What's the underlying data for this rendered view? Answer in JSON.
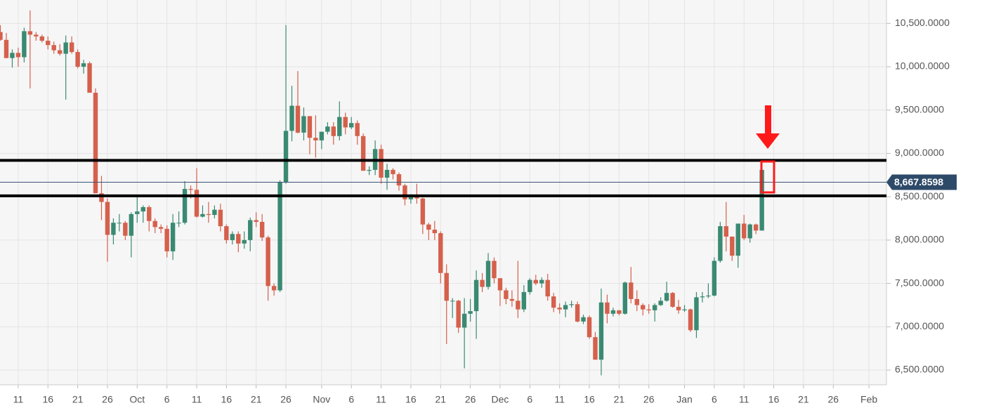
{
  "chart_data": {
    "type": "candlestick",
    "categories": [
      null,
      null,
      null,
      "11",
      null,
      null,
      null,
      null,
      "16",
      null,
      null,
      null,
      null,
      "21",
      null,
      null,
      null,
      null,
      "26",
      null,
      null,
      null,
      null,
      "Oct",
      null,
      null,
      null,
      null,
      "6",
      null,
      null,
      null,
      null,
      "11",
      null,
      null,
      null,
      null,
      "16",
      null,
      null,
      null,
      null,
      "21",
      null,
      null,
      null,
      null,
      "26",
      null,
      null,
      null,
      null,
      null,
      "Nov",
      null,
      null,
      null,
      null,
      "6",
      null,
      null,
      null,
      null,
      "11",
      null,
      null,
      null,
      null,
      "16",
      null,
      null,
      null,
      null,
      "21",
      null,
      null,
      null,
      null,
      "26",
      null,
      null,
      null,
      null,
      "Dec",
      null,
      null,
      null,
      null,
      "6",
      null,
      null,
      null,
      null,
      "11",
      null,
      null,
      null,
      null,
      "16",
      null,
      null,
      null,
      null,
      "21",
      null,
      null,
      null,
      null,
      "26",
      null,
      null,
      null,
      null,
      null,
      "Jan",
      null,
      null,
      null,
      null,
      "6",
      null,
      null,
      null,
      null,
      "11",
      null,
      null,
      null,
      null,
      "16",
      null,
      null,
      null,
      null,
      "21",
      null,
      null,
      null,
      null,
      "26",
      null,
      null,
      null,
      null,
      null,
      "Feb",
      null,
      null
    ],
    "open": [
      10400,
      10310,
      10100,
      10160,
      10110,
      10410,
      10370,
      10350,
      10300,
      10250,
      10190,
      10150,
      10280,
      10170,
      10000,
      10040,
      9700,
      8540,
      8440,
      8060,
      8200,
      8200,
      8050,
      8300,
      8330,
      8380,
      8220,
      8150,
      8130,
      7870,
      8200,
      8200,
      8590,
      8580,
      8270,
      8300,
      8290,
      8350,
      8160,
      8000,
      8070,
      7960,
      8000,
      8230,
      8210,
      8030,
      7470,
      7420,
      8670,
      9260,
      9550,
      9240,
      9430,
      9180,
      9150,
      9250,
      9310,
      9200,
      9420,
      9300,
      9350,
      9200,
      8800,
      8810,
      9050,
      8720,
      8810,
      8760,
      8630,
      8470,
      8500,
      8480,
      8180,
      8120,
      8080,
      7620,
      7300,
      7300,
      6990,
      7150,
      7180,
      7540,
      7460,
      7760,
      7560,
      7420,
      7320,
      7300,
      7200,
      7400,
      7540,
      7500,
      7540,
      7350,
      7220,
      7200,
      7250,
      7260,
      7060,
      7110,
      6880,
      6620,
      7280,
      7150,
      7190,
      7150,
      7510,
      7320,
      7250,
      7200,
      7190,
      7250,
      7300,
      7390,
      7230,
      7190,
      7200,
      6960,
      7340,
      7350,
      7360,
      7760,
      8160,
      8040,
      7820,
      8190,
      8020,
      8180,
      8110,
      null,
      null,
      null,
      null,
      null,
      null,
      null,
      null,
      null,
      null,
      null,
      null,
      null,
      null,
      null,
      null,
      null,
      null,
      null,
      null
    ],
    "high": [
      10480,
      10390,
      10200,
      10220,
      10450,
      10650,
      10400,
      10370,
      10350,
      10290,
      10260,
      10360,
      10350,
      10200,
      10080,
      10060,
      9750,
      8740,
      8480,
      8250,
      8300,
      8220,
      8320,
      8500,
      8400,
      8400,
      8250,
      8180,
      8170,
      8300,
      8330,
      8680,
      8630,
      8830,
      8400,
      8440,
      8400,
      8420,
      8180,
      8100,
      8100,
      8100,
      8260,
      8320,
      8300,
      8050,
      7500,
      8690,
      10480,
      9780,
      9950,
      9530,
      9430,
      9440,
      9250,
      9360,
      9360,
      9600,
      9470,
      9420,
      9380,
      9230,
      8850,
      9150,
      9100,
      8880,
      8830,
      8780,
      8650,
      8530,
      8650,
      8490,
      8200,
      8220,
      8100,
      7720,
      7330,
      7310,
      7330,
      7320,
      7650,
      7620,
      7850,
      7800,
      7560,
      7450,
      7420,
      7760,
      7480,
      7560,
      7600,
      7570,
      7610,
      7390,
      7270,
      7290,
      7300,
      7290,
      7140,
      7130,
      6940,
      7440,
      7370,
      7220,
      7190,
      7520,
      7690,
      7420,
      7270,
      7260,
      7270,
      7340,
      7520,
      7400,
      7310,
      7250,
      7210,
      7400,
      7400,
      7500,
      7800,
      8210,
      8440,
      8040,
      8190,
      8290,
      8190,
      8190,
      8880,
      null,
      null,
      null,
      null,
      null,
      null,
      null,
      null,
      null,
      null,
      null,
      null,
      null,
      null,
      null,
      null,
      null,
      null,
      null,
      null
    ],
    "low": [
      10300,
      10100,
      9990,
      10000,
      10050,
      9750,
      10300,
      10280,
      10200,
      10150,
      10130,
      9620,
      10150,
      9980,
      9920,
      9700,
      8540,
      8230,
      7750,
      7950,
      8100,
      8000,
      7800,
      8200,
      8200,
      8100,
      8080,
      8080,
      7800,
      7770,
      8150,
      8180,
      8480,
      8260,
      8260,
      8200,
      8250,
      8100,
      7960,
      7950,
      7860,
      7900,
      7870,
      8150,
      7990,
      7300,
      7360,
      7400,
      8650,
      9140,
      9230,
      9150,
      8990,
      8950,
      9050,
      9220,
      9100,
      9150,
      9220,
      9280,
      9100,
      8800,
      8750,
      8750,
      8650,
      8580,
      8700,
      8570,
      8400,
      8420,
      8420,
      8070,
      8000,
      8000,
      7500,
      6800,
      7100,
      6930,
      6520,
      7060,
      6860,
      7400,
      7430,
      7500,
      7240,
      7260,
      7230,
      7100,
      7170,
      7370,
      7480,
      7450,
      7300,
      7170,
      7150,
      7110,
      7220,
      7050,
      7030,
      6860,
      6620,
      6440,
      7040,
      7120,
      7130,
      7140,
      7270,
      7180,
      7130,
      7150,
      7060,
      7240,
      7290,
      7220,
      7150,
      7170,
      6940,
      6870,
      7280,
      7330,
      7350,
      7740,
      7870,
      7760,
      7680,
      8000,
      7970,
      8070,
      8110,
      null,
      null,
      null,
      null,
      null,
      null,
      null,
      null,
      null,
      null,
      null,
      null,
      null,
      null,
      null,
      null,
      null,
      null,
      null,
      null
    ],
    "close": [
      10310,
      10100,
      10160,
      10110,
      10410,
      10370,
      10350,
      10300,
      10250,
      10190,
      10150,
      10280,
      10170,
      10000,
      10040,
      9700,
      8540,
      8440,
      8060,
      8200,
      8200,
      8050,
      8300,
      8330,
      8380,
      8220,
      8150,
      8130,
      7870,
      8200,
      8200,
      8590,
      8580,
      8270,
      8300,
      8290,
      8350,
      8160,
      8000,
      8070,
      7960,
      8000,
      8230,
      8210,
      8030,
      7470,
      7420,
      8670,
      9260,
      9550,
      9240,
      9430,
      9180,
      9150,
      9250,
      9310,
      9200,
      9420,
      9300,
      9350,
      9200,
      8800,
      8810,
      9050,
      8720,
      8810,
      8760,
      8630,
      8470,
      8500,
      8480,
      8180,
      8120,
      8080,
      7620,
      7300,
      7300,
      6990,
      7150,
      7180,
      7540,
      7460,
      7760,
      7560,
      7420,
      7320,
      7300,
      7200,
      7400,
      7540,
      7500,
      7540,
      7350,
      7220,
      7200,
      7250,
      7260,
      7060,
      7110,
      6880,
      6620,
      7280,
      7150,
      7190,
      7150,
      7510,
      7320,
      7250,
      7200,
      7190,
      7250,
      7300,
      7390,
      7230,
      7190,
      7200,
      6960,
      7340,
      7350,
      7360,
      7760,
      8160,
      8040,
      7820,
      8190,
      8020,
      8180,
      8110,
      8810,
      null,
      null,
      null,
      null,
      null,
      null,
      null,
      null,
      null,
      null,
      null,
      null,
      null,
      null,
      null,
      null,
      null,
      null,
      null,
      null
    ],
    "up_color": "#3a8a72",
    "down_color": "#d5604c",
    "ylim": [
      6330,
      10770
    ],
    "yticks": [
      {
        "value": 6500,
        "label": "6,500.0000"
      },
      {
        "value": 7000,
        "label": "7,000.0000"
      },
      {
        "value": 7500,
        "label": "7,500.0000"
      },
      {
        "value": 8000,
        "label": "8,000.0000"
      },
      {
        "value": 8500,
        "label": "8,500.0000"
      },
      {
        "value": 9000,
        "label": "9,000.0000"
      },
      {
        "value": 9500,
        "label": "9,500.0000"
      },
      {
        "value": 10000,
        "label": "10,000.0000"
      },
      {
        "value": 10500,
        "label": "10,500.0000"
      }
    ],
    "grid": true,
    "current_price": {
      "value": 8667.8598,
      "label": "8,667.8598"
    },
    "hlines": [
      8920,
      8510
    ]
  }
}
